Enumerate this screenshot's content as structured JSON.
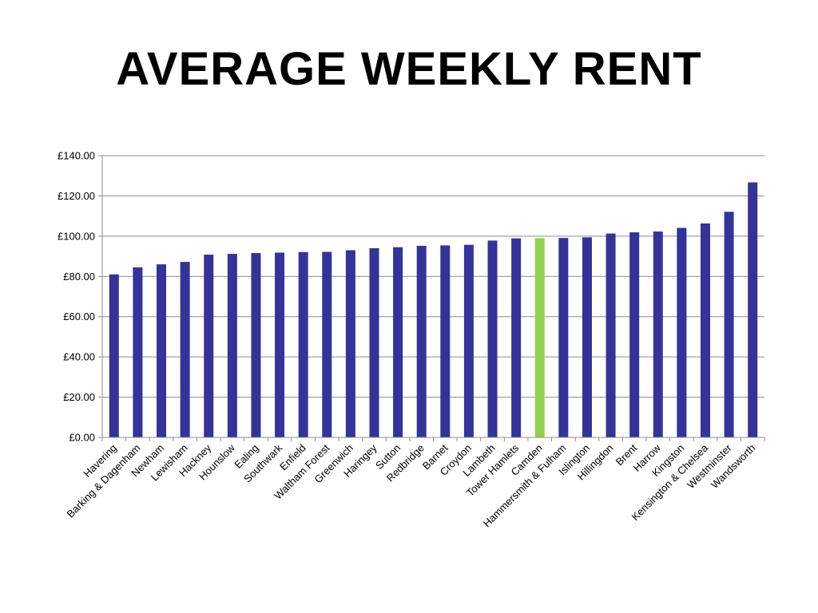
{
  "slide": {
    "title": "AVERAGE WEEKLY RENT"
  },
  "chart_data": {
    "type": "bar",
    "title": "",
    "xlabel": "",
    "ylabel": "",
    "ylim": [
      0,
      140
    ],
    "y_ticks": [
      "£0.00",
      "£20.00",
      "£40.00",
      "£60.00",
      "£80.00",
      "£100.00",
      "£120.00",
      "£140.00"
    ],
    "y_tick_values": [
      0,
      20,
      40,
      60,
      80,
      100,
      120,
      140
    ],
    "grid": true,
    "legend": "none",
    "bar_color": "#333399",
    "highlight_color": "#92D050",
    "highlight_category": "Camden",
    "categories": [
      "Havering",
      "Barking & Dagenham",
      "Newham",
      "Lewisham",
      "Hackney",
      "Hounslow",
      "Ealing",
      "Southwark",
      "Enfield",
      "Waltham Forest",
      "Greenwich",
      "Haringey",
      "Sutton",
      "Redbridge",
      "Barnet",
      "Croydon",
      "Lambeth",
      "Tower Hamlets",
      "Camden",
      "Hammersmith & Fulham",
      "Islington",
      "Hillingdon",
      "Brent",
      "Harrow",
      "Kingston",
      "Kensington & Chelsea",
      "Westminster",
      "Wandsworth"
    ],
    "values": [
      81.0,
      84.5,
      86.0,
      87.2,
      90.8,
      91.2,
      91.6,
      91.8,
      92.1,
      92.2,
      93.0,
      94.0,
      94.5,
      95.2,
      95.4,
      95.7,
      97.8,
      98.9,
      99.0,
      99.1,
      99.4,
      101.3,
      101.9,
      102.3,
      104.1,
      106.3,
      112.1,
      126.7
    ]
  }
}
